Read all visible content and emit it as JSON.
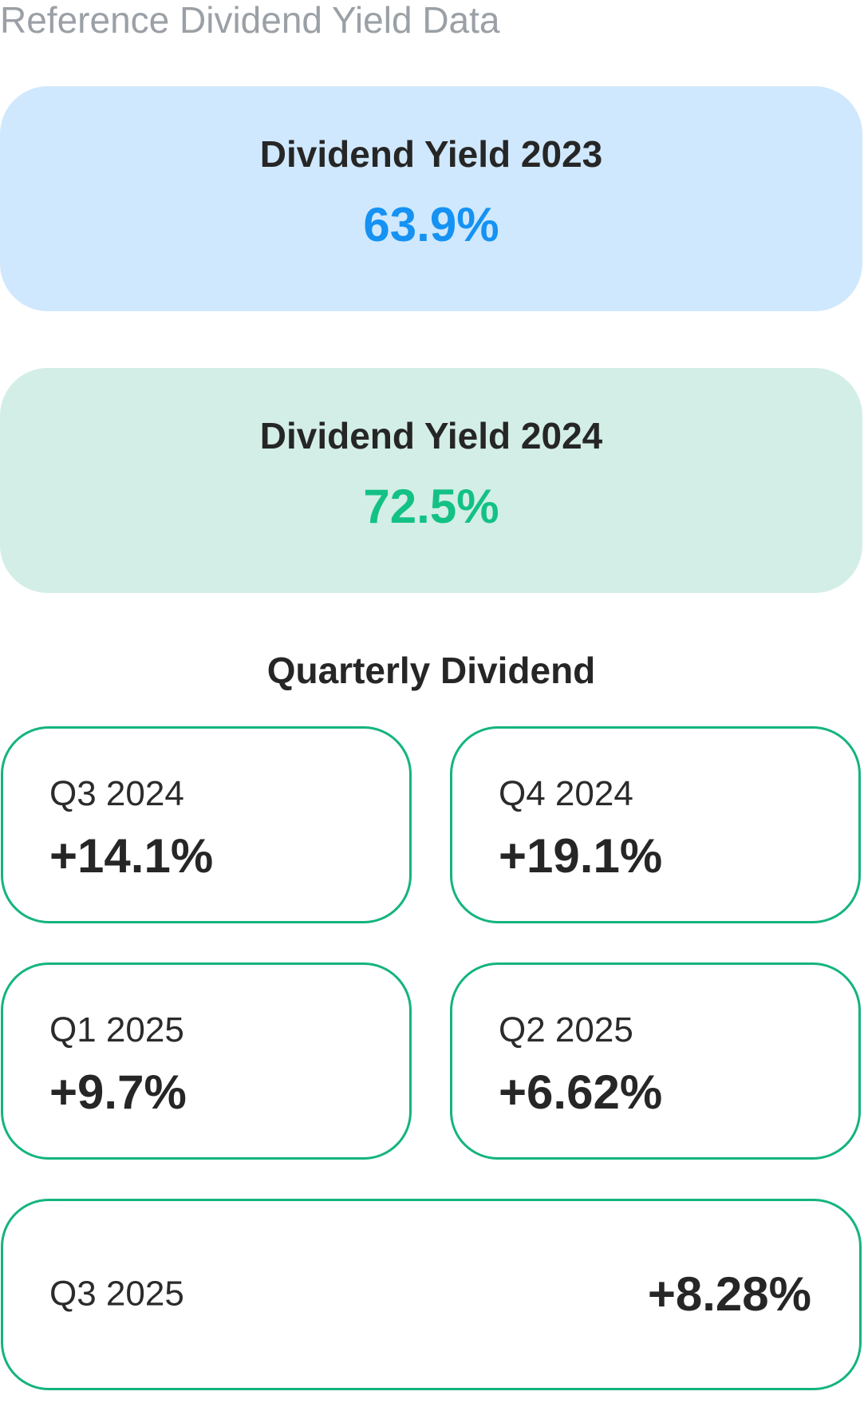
{
  "header": {
    "title": "Reference Dividend Yield Data"
  },
  "yields": [
    {
      "label": "Dividend Yield 2023",
      "value": "63.9%",
      "accent": "#1592f3",
      "background": "#cfe8fd"
    },
    {
      "label": "Dividend Yield 2024",
      "value": "72.5%",
      "accent": "#13c185",
      "background": "#d3eee6"
    }
  ],
  "quarterly": {
    "title": "Quarterly Dividend",
    "border_color": "#14b47e",
    "items": [
      {
        "label": "Q3 2024",
        "value": "+14.1%"
      },
      {
        "label": "Q4 2024",
        "value": "+19.1%"
      },
      {
        "label": "Q1 2025",
        "value": "+9.7%"
      },
      {
        "label": "Q2 2025",
        "value": "+6.62%"
      },
      {
        "label": "Q3 2025",
        "value": "+8.28%"
      }
    ]
  }
}
